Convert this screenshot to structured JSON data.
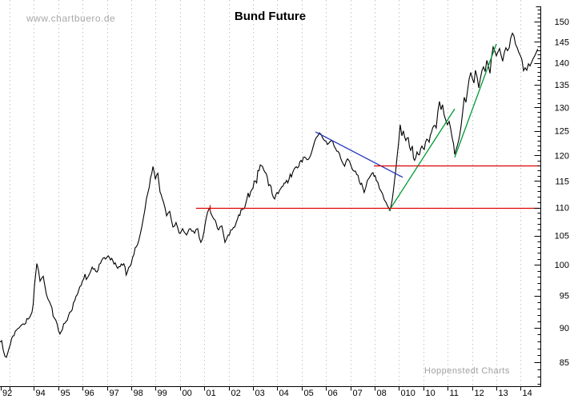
{
  "page": {
    "watermark": "www.chartbuero.de",
    "title": "Bund Future",
    "credit": "Hoppenstedt Charts"
  },
  "chart_data": {
    "type": "line",
    "title": "Bund Future",
    "grid": "vertical-dashed",
    "legend": "none",
    "colors": {
      "series": "#000000",
      "downtrend": "#2233bb",
      "uptrend": "#009933",
      "support_resistance": "#dd0000",
      "gridline": "#c4c4c4",
      "axis": "#000000"
    },
    "x_axis": {
      "unit": "year",
      "edge_label": "92",
      "ticks": [
        {
          "year": 1993,
          "label": ""
        },
        {
          "year": 1994,
          "label": "94"
        },
        {
          "year": 1995,
          "label": "95"
        },
        {
          "year": 1996,
          "label": "96"
        },
        {
          "year": 1997,
          "label": "97"
        },
        {
          "year": 1998,
          "label": "98"
        },
        {
          "year": 1999,
          "label": "99"
        },
        {
          "year": 2000,
          "label": "00"
        },
        {
          "year": 2001,
          "label": "01"
        },
        {
          "year": 2002,
          "label": "02"
        },
        {
          "year": 2003,
          "label": "03"
        },
        {
          "year": 2004,
          "label": "04"
        },
        {
          "year": 2005,
          "label": "05"
        },
        {
          "year": 2006,
          "label": "06"
        },
        {
          "year": 2007,
          "label": "07"
        },
        {
          "year": 2008,
          "label": "08"
        },
        {
          "year": 2009,
          "label": "010"
        },
        {
          "year": 2010,
          "label": "10"
        },
        {
          "year": 2011,
          "label": "11"
        },
        {
          "year": 2012,
          "label": "12"
        },
        {
          "year": 2013,
          "label": "13"
        },
        {
          "year": 2014,
          "label": "14"
        }
      ]
    },
    "y_axis": {
      "scale": "log",
      "side": "right",
      "minor_step": 1,
      "major_step": 5,
      "minor_range": [
        82,
        153
      ],
      "major_labels": [
        150,
        145,
        140,
        135,
        130,
        125,
        120,
        115,
        110,
        105,
        100,
        95,
        90,
        85
      ]
    },
    "series": [
      {
        "name": "Bund Future",
        "points": [
          [
            1992.61,
            87.9
          ],
          [
            1992.74,
            86.7
          ],
          [
            1992.87,
            85.7
          ],
          [
            1993.13,
            88.8
          ],
          [
            1993.39,
            90.0
          ],
          [
            1993.66,
            90.7
          ],
          [
            1993.92,
            92.4
          ],
          [
            1994.12,
            100.2
          ],
          [
            1994.25,
            97.3
          ],
          [
            1994.38,
            98.1
          ],
          [
            1994.51,
            95.2
          ],
          [
            1994.64,
            94.0
          ],
          [
            1994.84,
            91.5
          ],
          [
            1995.07,
            89.1
          ],
          [
            1995.27,
            90.7
          ],
          [
            1995.47,
            92.4
          ],
          [
            1995.73,
            94.9
          ],
          [
            1995.99,
            97.3
          ],
          [
            1996.26,
            98.3
          ],
          [
            1996.39,
            99.6
          ],
          [
            1996.59,
            98.8
          ],
          [
            1996.78,
            100.7
          ],
          [
            1997.05,
            101.5
          ],
          [
            1997.24,
            100.7
          ],
          [
            1997.44,
            99.4
          ],
          [
            1997.64,
            99.9
          ],
          [
            1997.84,
            98.8
          ],
          [
            1998.0,
            100.2
          ],
          [
            1998.16,
            102.9
          ],
          [
            1998.3,
            104.0
          ],
          [
            1998.43,
            106.5
          ],
          [
            1998.56,
            109.6
          ],
          [
            1998.69,
            112.9
          ],
          [
            1998.79,
            115.6
          ],
          [
            1998.89,
            117.8
          ],
          [
            1998.99,
            115.3
          ],
          [
            1999.09,
            116.5
          ],
          [
            1999.18,
            112.9
          ],
          [
            1999.32,
            111.1
          ],
          [
            1999.45,
            108.5
          ],
          [
            1999.58,
            109.3
          ],
          [
            1999.71,
            106.5
          ],
          [
            1999.84,
            107.3
          ],
          [
            1999.97,
            105.4
          ],
          [
            2000.11,
            106.2
          ],
          [
            2000.27,
            105.1
          ],
          [
            2000.43,
            106.2
          ],
          [
            2000.6,
            105.4
          ],
          [
            2000.73,
            106.2
          ],
          [
            2000.86,
            103.8
          ],
          [
            2000.99,
            105.7
          ],
          [
            2001.13,
            109.1
          ],
          [
            2001.22,
            109.9
          ],
          [
            2001.32,
            108.5
          ],
          [
            2001.45,
            107.7
          ],
          [
            2001.59,
            106.0
          ],
          [
            2001.72,
            106.7
          ],
          [
            2001.85,
            103.8
          ],
          [
            2001.98,
            105.1
          ],
          [
            2002.14,
            106.0
          ],
          [
            2002.31,
            107.3
          ],
          [
            2002.51,
            109.6
          ],
          [
            2002.7,
            110.7
          ],
          [
            2002.9,
            112.9
          ],
          [
            2003.1,
            115.0
          ],
          [
            2003.3,
            118.1
          ],
          [
            2003.49,
            116.7
          ],
          [
            2003.69,
            114.3
          ],
          [
            2003.89,
            111.6
          ],
          [
            2004.09,
            113.2
          ],
          [
            2004.28,
            114.6
          ],
          [
            2004.48,
            115.3
          ],
          [
            2004.68,
            117.2
          ],
          [
            2004.88,
            117.8
          ],
          [
            2005.07,
            119.6
          ],
          [
            2005.27,
            119.2
          ],
          [
            2005.47,
            121.7
          ],
          [
            2005.6,
            123.6
          ],
          [
            2005.73,
            124.6
          ],
          [
            2005.86,
            123.6
          ],
          [
            2006.06,
            122.2
          ],
          [
            2006.22,
            123.0
          ],
          [
            2006.39,
            121.4
          ],
          [
            2006.55,
            120.4
          ],
          [
            2006.71,
            118.3
          ],
          [
            2006.88,
            119.3
          ],
          [
            2007.04,
            117.8
          ],
          [
            2007.21,
            116.9
          ],
          [
            2007.37,
            114.9
          ],
          [
            2007.51,
            113.8
          ],
          [
            2007.57,
            112.8
          ],
          [
            2007.7,
            115.1
          ],
          [
            2007.83,
            116.0
          ],
          [
            2007.93,
            116.6
          ],
          [
            2008.07,
            115.1
          ],
          [
            2008.2,
            113.5
          ],
          [
            2008.33,
            112.5
          ],
          [
            2008.46,
            111.0
          ],
          [
            2008.63,
            109.5
          ],
          [
            2008.72,
            111.4
          ],
          [
            2008.82,
            115.2
          ],
          [
            2008.92,
            119.7
          ],
          [
            2009.05,
            126.3
          ],
          [
            2009.12,
            124.0
          ],
          [
            2009.18,
            125.0
          ],
          [
            2009.28,
            123.0
          ],
          [
            2009.38,
            123.6
          ],
          [
            2009.48,
            121.0
          ],
          [
            2009.55,
            121.9
          ],
          [
            2009.64,
            119.0
          ],
          [
            2009.74,
            120.7
          ],
          [
            2009.84,
            120.1
          ],
          [
            2009.94,
            121.9
          ],
          [
            2010.04,
            121.2
          ],
          [
            2010.14,
            123.3
          ],
          [
            2010.24,
            122.7
          ],
          [
            2010.33,
            124.6
          ],
          [
            2010.43,
            126.1
          ],
          [
            2010.53,
            125.6
          ],
          [
            2010.6,
            129.2
          ],
          [
            2010.66,
            131.3
          ],
          [
            2010.73,
            129.5
          ],
          [
            2010.79,
            130.6
          ],
          [
            2010.86,
            128.3
          ],
          [
            2010.93,
            127.1
          ],
          [
            2010.99,
            126.3
          ],
          [
            2011.06,
            127.0
          ],
          [
            2011.12,
            125.6
          ],
          [
            2011.19,
            123.4
          ],
          [
            2011.29,
            120.2
          ],
          [
            2011.39,
            121.9
          ],
          [
            2011.49,
            124.0
          ],
          [
            2011.55,
            126.0
          ],
          [
            2011.62,
            129.1
          ],
          [
            2011.68,
            132.2
          ],
          [
            2011.75,
            131.1
          ],
          [
            2011.82,
            133.8
          ],
          [
            2011.88,
            136.3
          ],
          [
            2011.95,
            137.8
          ],
          [
            2012.01,
            136.5
          ],
          [
            2012.08,
            135.4
          ],
          [
            2012.14,
            138.3
          ],
          [
            2012.21,
            136.7
          ],
          [
            2012.28,
            134.3
          ],
          [
            2012.34,
            136.3
          ],
          [
            2012.41,
            138.3
          ],
          [
            2012.47,
            139.1
          ],
          [
            2012.54,
            138.0
          ],
          [
            2012.61,
            140.6
          ],
          [
            2012.67,
            139.3
          ],
          [
            2012.74,
            137.6
          ],
          [
            2012.8,
            141.3
          ],
          [
            2012.87,
            143.8
          ],
          [
            2012.93,
            142.9
          ],
          [
            2013.0,
            141.7
          ],
          [
            2013.06,
            142.5
          ],
          [
            2013.13,
            143.4
          ],
          [
            2013.2,
            141.7
          ],
          [
            2013.26,
            140.4
          ],
          [
            2013.33,
            142.5
          ],
          [
            2013.39,
            143.6
          ],
          [
            2013.46,
            142.9
          ],
          [
            2013.53,
            143.6
          ],
          [
            2013.59,
            145.9
          ],
          [
            2013.66,
            147.1
          ],
          [
            2013.72,
            146.5
          ],
          [
            2013.79,
            144.4
          ],
          [
            2013.86,
            143.6
          ],
          [
            2013.92,
            142.5
          ],
          [
            2013.99,
            141.7
          ],
          [
            2014.05,
            140.8
          ],
          [
            2014.12,
            138.2
          ],
          [
            2014.18,
            138.9
          ],
          [
            2014.25,
            138.3
          ],
          [
            2014.32,
            139.8
          ],
          [
            2014.38,
            139.3
          ],
          [
            2014.45,
            140.2
          ],
          [
            2014.51,
            141.0
          ],
          [
            2014.58,
            141.7
          ],
          [
            2014.64,
            142.5
          ],
          [
            2014.7,
            143.3
          ]
        ]
      }
    ],
    "trendlines": [
      {
        "name": "downtrend-2005-2009",
        "color": "#2233bb",
        "from": [
          2005.57,
          124.8
        ],
        "to": [
          2009.15,
          115.7
        ]
      },
      {
        "name": "uptrend-2008-2011",
        "color": "#009933",
        "from": [
          2008.59,
          109.4
        ],
        "to": [
          2011.29,
          129.7
        ]
      },
      {
        "name": "uptrend-2011-2013",
        "color": "#009933",
        "from": [
          2011.29,
          119.6
        ],
        "to": [
          2013.0,
          144.5
        ]
      }
    ],
    "support_resistance": [
      {
        "name": "support-110",
        "price": 110,
        "from_year": 2000.66,
        "to_year": 2014.78,
        "color": "#dd0000",
        "marker_year": 2001.22
      },
      {
        "name": "resistance-118",
        "price": 118,
        "from_year": 2007.97,
        "to_year": 2014.78,
        "color": "#dd0000"
      }
    ]
  }
}
